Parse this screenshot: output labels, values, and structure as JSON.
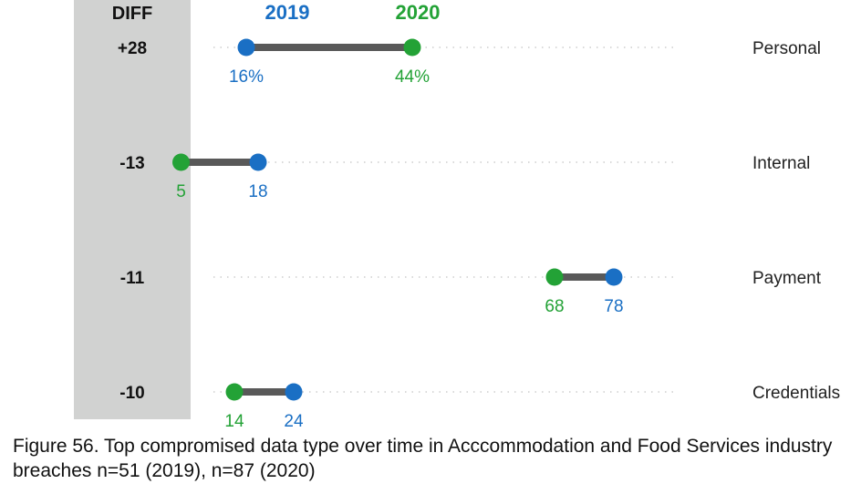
{
  "chart_data": {
    "type": "dumbbell",
    "column_header": "DIFF",
    "series": [
      {
        "name": "2019",
        "color": "#1a6fc4"
      },
      {
        "name": "2020",
        "color": "#23a236"
      }
    ],
    "xlim": [
      0,
      100
    ],
    "rows": [
      {
        "category": "Personal",
        "diff": "+28",
        "v2019": 16,
        "v2020": 44,
        "label2019": "16%",
        "label2020": "44%"
      },
      {
        "category": "Internal",
        "diff": "-13",
        "v2019": 18,
        "v2020": 5,
        "label2019": "18",
        "label2020": "5"
      },
      {
        "category": "Payment",
        "diff": "-11",
        "v2019": 78,
        "v2020": 68,
        "label2019": "78",
        "label2020": "68"
      },
      {
        "category": "Credentials",
        "diff": "-10",
        "v2019": 24,
        "v2020": 14,
        "label2019": "24",
        "label2020": "14"
      }
    ]
  },
  "caption": "Figure 56. Top compromised data type over time in Acccommodation and Food Services industry breaches n=51 (2019), n=87 (2020)",
  "colors": {
    "connector": "#595959",
    "diff_band": "#d1d2d1",
    "guide": "#c4c4c4"
  }
}
